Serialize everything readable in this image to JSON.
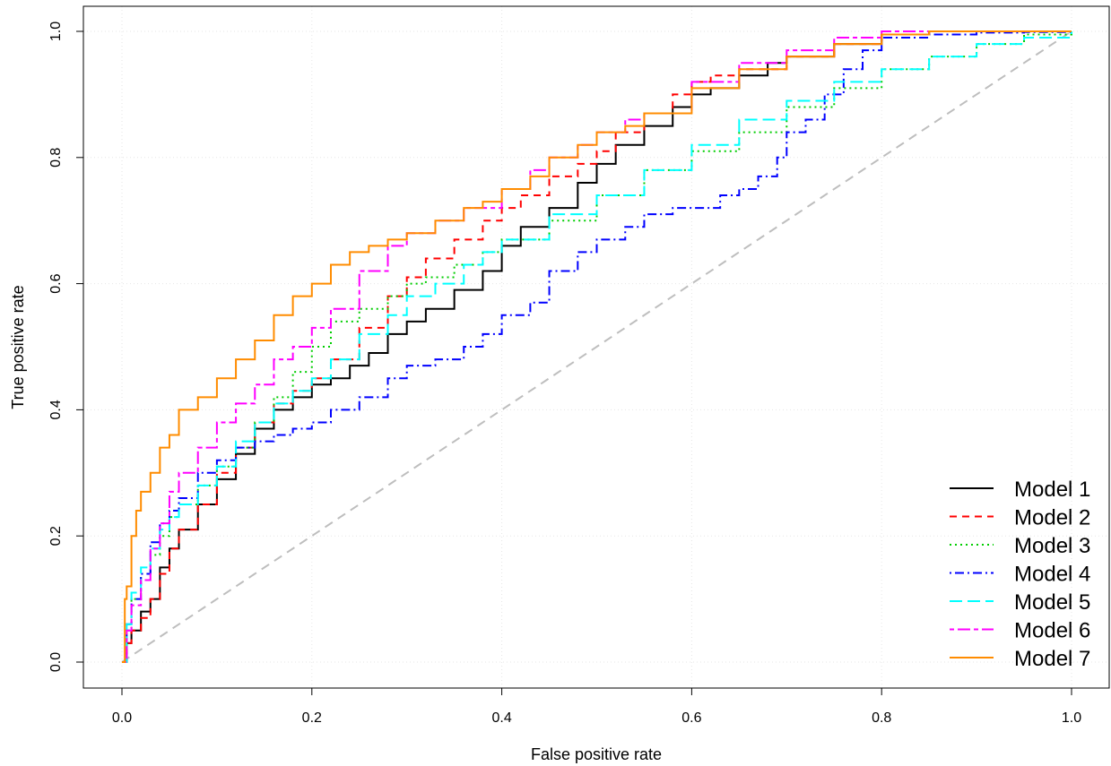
{
  "chart_data": {
    "type": "line",
    "xlabel": "False positive rate",
    "ylabel": "True positive rate",
    "xlim": [
      0,
      1
    ],
    "ylim": [
      0,
      1
    ],
    "x_ticks": [
      "0.0",
      "0.2",
      "0.4",
      "0.6",
      "0.8",
      "1.0"
    ],
    "y_ticks": [
      "0.0",
      "0.2",
      "0.4",
      "0.6",
      "0.8",
      "1.0"
    ],
    "grid": true,
    "legend_position": "bottom-right",
    "reference_line": {
      "x": [
        0,
        1
      ],
      "y": [
        0,
        1
      ],
      "color": "#bebebe",
      "style": "dashed"
    },
    "series": [
      {
        "name": "Model 1",
        "color": "#000000",
        "dash": "solid",
        "x": [
          0,
          0.005,
          0.01,
          0.02,
          0.03,
          0.04,
          0.05,
          0.06,
          0.08,
          0.1,
          0.12,
          0.14,
          0.16,
          0.18,
          0.2,
          0.22,
          0.24,
          0.26,
          0.28,
          0.3,
          0.32,
          0.35,
          0.38,
          0.4,
          0.42,
          0.45,
          0.48,
          0.5,
          0.52,
          0.55,
          0.58,
          0.6,
          0.62,
          0.65,
          0.68,
          0.7,
          0.75,
          0.8,
          0.85,
          1.0
        ],
        "y": [
          0,
          0.03,
          0.05,
          0.08,
          0.1,
          0.15,
          0.18,
          0.21,
          0.25,
          0.29,
          0.33,
          0.37,
          0.4,
          0.42,
          0.44,
          0.45,
          0.47,
          0.49,
          0.52,
          0.54,
          0.56,
          0.59,
          0.62,
          0.66,
          0.69,
          0.72,
          0.76,
          0.79,
          0.82,
          0.85,
          0.88,
          0.9,
          0.91,
          0.93,
          0.95,
          0.96,
          0.98,
          0.995,
          1.0,
          1.0
        ]
      },
      {
        "name": "Model 2",
        "color": "#ff0000",
        "dash": "dashed",
        "x": [
          0,
          0.005,
          0.01,
          0.02,
          0.03,
          0.04,
          0.05,
          0.06,
          0.08,
          0.1,
          0.12,
          0.14,
          0.16,
          0.18,
          0.2,
          0.22,
          0.25,
          0.28,
          0.3,
          0.32,
          0.35,
          0.38,
          0.4,
          0.42,
          0.45,
          0.48,
          0.5,
          0.52,
          0.55,
          0.58,
          0.6,
          0.62,
          0.65,
          0.7,
          0.75,
          0.8,
          0.85,
          1.0
        ],
        "y": [
          0,
          0.03,
          0.05,
          0.07,
          0.1,
          0.14,
          0.18,
          0.21,
          0.25,
          0.3,
          0.34,
          0.38,
          0.41,
          0.43,
          0.45,
          0.48,
          0.53,
          0.58,
          0.61,
          0.64,
          0.67,
          0.7,
          0.72,
          0.74,
          0.77,
          0.79,
          0.81,
          0.84,
          0.87,
          0.9,
          0.92,
          0.93,
          0.94,
          0.96,
          0.98,
          0.995,
          1.0,
          1.0
        ]
      },
      {
        "name": "Model 3",
        "color": "#00cd00",
        "dash": "dotted",
        "x": [
          0,
          0.005,
          0.01,
          0.02,
          0.03,
          0.04,
          0.05,
          0.06,
          0.08,
          0.1,
          0.12,
          0.14,
          0.16,
          0.18,
          0.2,
          0.22,
          0.25,
          0.28,
          0.3,
          0.32,
          0.35,
          0.38,
          0.4,
          0.45,
          0.5,
          0.55,
          0.6,
          0.65,
          0.7,
          0.75,
          0.8,
          0.85,
          0.9,
          0.95,
          1.0
        ],
        "y": [
          0,
          0.05,
          0.1,
          0.14,
          0.17,
          0.2,
          0.23,
          0.25,
          0.28,
          0.31,
          0.34,
          0.38,
          0.42,
          0.46,
          0.5,
          0.54,
          0.56,
          0.58,
          0.6,
          0.61,
          0.63,
          0.65,
          0.67,
          0.7,
          0.74,
          0.78,
          0.81,
          0.84,
          0.88,
          0.91,
          0.94,
          0.96,
          0.98,
          0.995,
          1.0
        ]
      },
      {
        "name": "Model 4",
        "color": "#0000ff",
        "dash": "dotdash",
        "x": [
          0,
          0.005,
          0.01,
          0.02,
          0.03,
          0.04,
          0.05,
          0.06,
          0.08,
          0.1,
          0.12,
          0.14,
          0.16,
          0.18,
          0.2,
          0.22,
          0.25,
          0.28,
          0.3,
          0.33,
          0.36,
          0.38,
          0.4,
          0.43,
          0.45,
          0.48,
          0.5,
          0.53,
          0.55,
          0.58,
          0.6,
          0.63,
          0.65,
          0.67,
          0.69,
          0.7,
          0.72,
          0.74,
          0.76,
          0.78,
          0.8,
          0.85,
          0.9,
          0.95,
          1.0
        ],
        "y": [
          0,
          0.06,
          0.1,
          0.14,
          0.19,
          0.22,
          0.24,
          0.26,
          0.3,
          0.32,
          0.34,
          0.35,
          0.36,
          0.37,
          0.38,
          0.4,
          0.42,
          0.45,
          0.47,
          0.48,
          0.5,
          0.52,
          0.55,
          0.57,
          0.62,
          0.65,
          0.67,
          0.69,
          0.71,
          0.72,
          0.72,
          0.74,
          0.75,
          0.77,
          0.8,
          0.84,
          0.86,
          0.9,
          0.94,
          0.97,
          0.99,
          0.995,
          0.998,
          0.999,
          1.0
        ]
      },
      {
        "name": "Model 5",
        "color": "#00ffff",
        "dash": "longdash",
        "x": [
          0,
          0.005,
          0.01,
          0.02,
          0.03,
          0.04,
          0.05,
          0.06,
          0.08,
          0.1,
          0.12,
          0.14,
          0.16,
          0.18,
          0.2,
          0.22,
          0.25,
          0.28,
          0.3,
          0.33,
          0.36,
          0.38,
          0.4,
          0.45,
          0.5,
          0.55,
          0.6,
          0.65,
          0.7,
          0.75,
          0.8,
          0.85,
          0.9,
          0.95,
          1.0
        ],
        "y": [
          0,
          0.06,
          0.11,
          0.15,
          0.18,
          0.21,
          0.23,
          0.25,
          0.28,
          0.31,
          0.35,
          0.38,
          0.41,
          0.43,
          0.45,
          0.48,
          0.52,
          0.55,
          0.58,
          0.6,
          0.63,
          0.65,
          0.67,
          0.71,
          0.74,
          0.78,
          0.82,
          0.86,
          0.89,
          0.92,
          0.94,
          0.96,
          0.98,
          0.99,
          1.0
        ]
      },
      {
        "name": "Model 6",
        "color": "#ff00ff",
        "dash": "twodash",
        "x": [
          0,
          0.005,
          0.01,
          0.02,
          0.03,
          0.04,
          0.05,
          0.06,
          0.08,
          0.1,
          0.12,
          0.14,
          0.16,
          0.18,
          0.2,
          0.22,
          0.25,
          0.28,
          0.3,
          0.33,
          0.36,
          0.4,
          0.43,
          0.45,
          0.48,
          0.5,
          0.53,
          0.55,
          0.6,
          0.65,
          0.7,
          0.75,
          0.8,
          0.85,
          1.0
        ],
        "y": [
          0,
          0.05,
          0.09,
          0.13,
          0.18,
          0.22,
          0.27,
          0.3,
          0.34,
          0.38,
          0.41,
          0.44,
          0.48,
          0.5,
          0.53,
          0.56,
          0.62,
          0.66,
          0.68,
          0.7,
          0.72,
          0.75,
          0.78,
          0.8,
          0.82,
          0.84,
          0.86,
          0.87,
          0.92,
          0.95,
          0.97,
          0.99,
          1.0,
          1.0,
          1.0
        ]
      },
      {
        "name": "Model 7",
        "color": "#ff8c00",
        "dash": "solid",
        "x": [
          0,
          0.003,
          0.005,
          0.01,
          0.015,
          0.02,
          0.03,
          0.04,
          0.05,
          0.06,
          0.08,
          0.1,
          0.12,
          0.14,
          0.16,
          0.18,
          0.2,
          0.22,
          0.24,
          0.26,
          0.28,
          0.3,
          0.33,
          0.36,
          0.38,
          0.4,
          0.43,
          0.45,
          0.48,
          0.5,
          0.53,
          0.55,
          0.6,
          0.65,
          0.7,
          0.75,
          0.8,
          0.85,
          1.0
        ],
        "y": [
          0,
          0.1,
          0.12,
          0.2,
          0.24,
          0.27,
          0.3,
          0.34,
          0.36,
          0.4,
          0.42,
          0.45,
          0.48,
          0.51,
          0.55,
          0.58,
          0.6,
          0.63,
          0.65,
          0.66,
          0.67,
          0.68,
          0.7,
          0.72,
          0.73,
          0.75,
          0.77,
          0.8,
          0.82,
          0.84,
          0.85,
          0.87,
          0.91,
          0.94,
          0.96,
          0.98,
          0.995,
          1.0,
          1.0
        ]
      }
    ]
  }
}
